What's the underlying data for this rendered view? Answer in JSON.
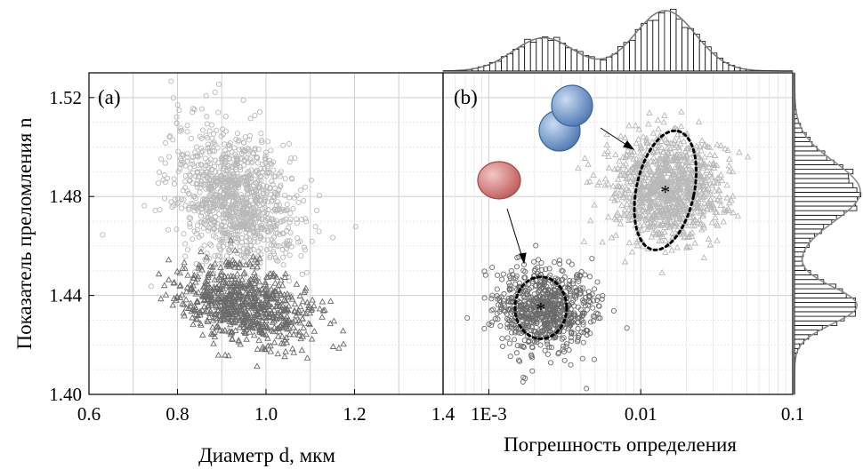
{
  "chart_data": [
    {
      "type": "scatter",
      "panel_label": "(a)",
      "xlabel": "Диаметр d, мкм",
      "ylabel": "Показатель преломления n",
      "xlim": [
        0.6,
        1.4
      ],
      "ylim": [
        1.4,
        1.53
      ],
      "xticks": [
        "0.6",
        "0.8",
        "1.0",
        "1.2",
        "1.4"
      ],
      "yticks": [
        "1.40",
        "1.44",
        "1.48",
        "1.52"
      ],
      "grid": true,
      "series": [
        {
          "marker": "circle",
          "color": "#b8b8b8",
          "n": 1100,
          "center": {
            "x": 0.93,
            "y": 1.479
          },
          "spread": {
            "x": 0.07,
            "y": 0.014
          },
          "corr": -0.3
        },
        {
          "marker": "triangle",
          "color": "#6a6a6a",
          "n": 750,
          "center": {
            "x": 0.955,
            "y": 1.436
          },
          "spread": {
            "x": 0.075,
            "y": 0.008
          },
          "corr": -0.35
        }
      ]
    },
    {
      "type": "scatter",
      "panel_label": "(b)",
      "xlabel": "Погрешность определения",
      "xscale": "log",
      "xlim": [
        0.0005,
        0.1
      ],
      "ylim": [
        1.4,
        1.53
      ],
      "xticks": [
        "1E-3",
        "0.01",
        "0.1"
      ],
      "grid": true,
      "series": [
        {
          "marker": "triangle",
          "color": "#b8b8b8",
          "n": 1000,
          "center": {
            "x": 0.0145,
            "y": 1.4825
          },
          "spread_log10": 0.18,
          "spread_y": 0.011
        },
        {
          "marker": "circle",
          "color": "#6a6a6a",
          "n": 750,
          "center": {
            "x": 0.0023,
            "y": 1.435
          },
          "spread_log10": 0.16,
          "spread_y": 0.0085
        }
      ],
      "centroids": [
        {
          "x": 0.0145,
          "y": 1.4825,
          "symbol": "*"
        },
        {
          "x": 0.0022,
          "y": 1.435,
          "symbol": "*"
        }
      ],
      "ellipses": [
        {
          "center_x": 0.0145,
          "center_y": 1.4825,
          "rx_log10": 0.19,
          "ry": 0.0245,
          "style": "dotted"
        },
        {
          "center_x": 0.0022,
          "center_y": 1.435,
          "rx_log10": 0.17,
          "ry": 0.0125,
          "style": "dotted"
        }
      ],
      "insets": [
        {
          "name": "doublet-particle",
          "color": "#6d93c6"
        },
        {
          "name": "single-particle",
          "color": "#cf7a7a"
        }
      ],
      "marginal_histograms": {
        "top": "distribution of error (bimodal, peaks near 1E-3 and 0.015)",
        "right": "distribution of n (bimodal, peaks near 1.436 and 1.482)"
      }
    }
  ]
}
